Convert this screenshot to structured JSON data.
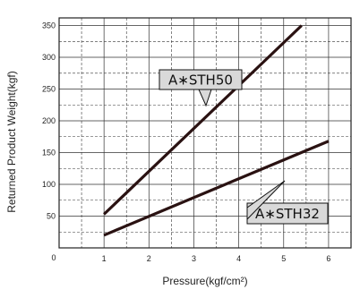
{
  "chart_data": {
    "type": "line",
    "xlabel": "Pressure(kgf/cm²)",
    "ylabel": "Returned Product Weight(kgf)",
    "xlim": [
      0,
      6.5
    ],
    "ylim": [
      0,
      362
    ],
    "x_ticks": [
      1,
      2,
      3,
      4,
      5,
      6
    ],
    "y_ticks": [
      50,
      100,
      150,
      200,
      250,
      300,
      350
    ],
    "origin_label": "0",
    "grid": true,
    "legend": "none",
    "series": [
      {
        "name": "A∗STH50",
        "x": [
          1,
          5.4
        ],
        "y": [
          53,
          350
        ]
      },
      {
        "name": "A∗STH32",
        "x": [
          1,
          6
        ],
        "y": [
          20,
          168
        ]
      }
    ],
    "colors": {
      "line": "#2a1212",
      "callout_fill": "#d9d9d9",
      "grid": "#333333"
    }
  }
}
